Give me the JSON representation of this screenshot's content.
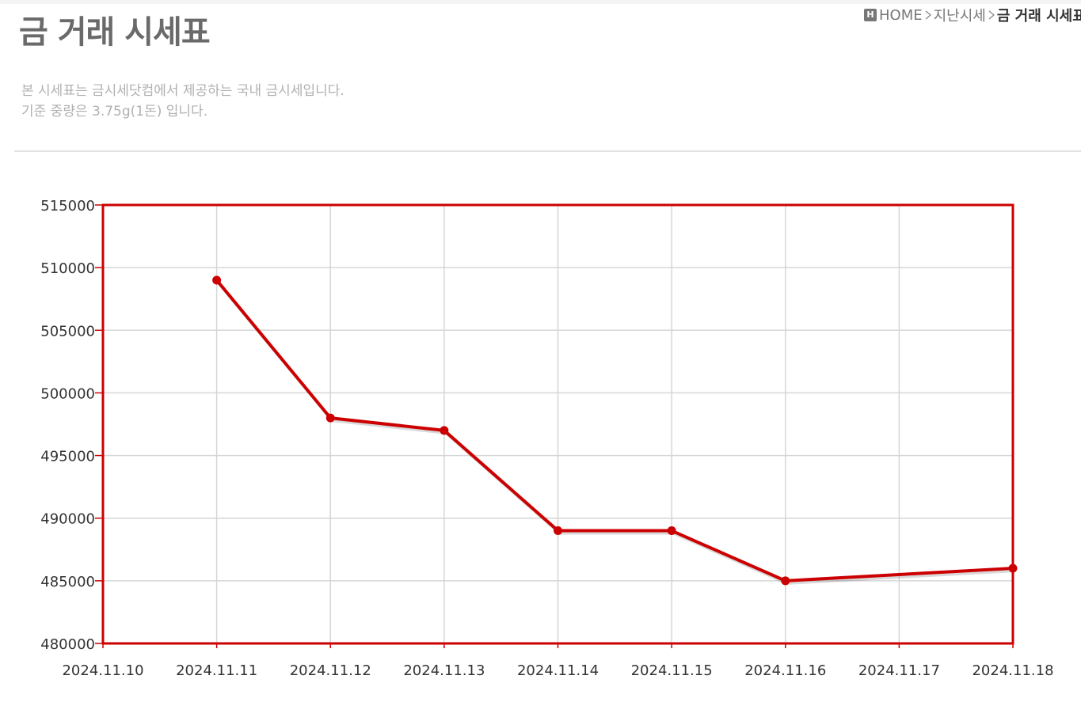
{
  "header": {
    "title": "금 거래 시세표",
    "breadcrumb": [
      "HOME",
      "지난시세",
      "금 거래 시세표"
    ],
    "description": [
      "본 시세표는 금시세닷컴에서 제공하는 국내 금시세입니다.",
      "기준 중량은 3.75g(1돈) 입니다."
    ]
  },
  "chart_data": {
    "type": "line",
    "categories": [
      "2024.11.10",
      "2024.11.11",
      "2024.11.12",
      "2024.11.13",
      "2024.11.14",
      "2024.11.15",
      "2024.11.16",
      "2024.11.17",
      "2024.11.18"
    ],
    "x": [
      "2024.11.11",
      "2024.11.12",
      "2024.11.13",
      "2024.11.14",
      "2024.11.15",
      "2024.11.16",
      "2024.11.18"
    ],
    "values": [
      509000,
      498000,
      497000,
      489000,
      489000,
      485000,
      486000
    ],
    "color": "#cc0000",
    "ylim": [
      480000,
      515000
    ],
    "yticks": [
      480000,
      485000,
      490000,
      495000,
      500000,
      505000,
      510000,
      515000
    ],
    "grid": true
  }
}
